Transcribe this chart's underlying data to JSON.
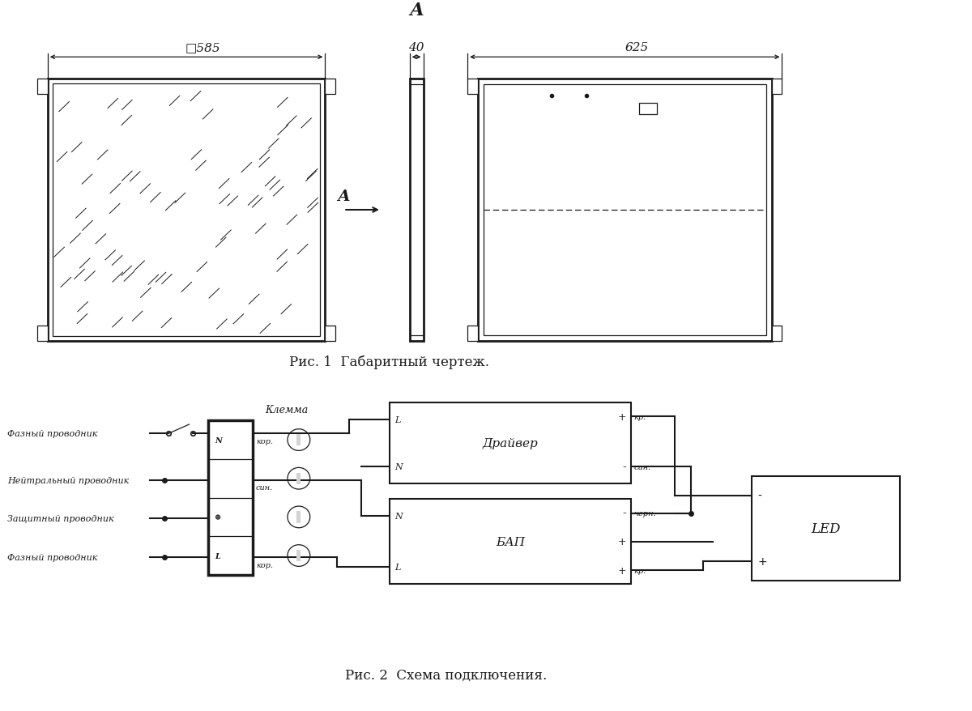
{
  "bg_color": "#ffffff",
  "line_color": "#1a1a1a",
  "fig1_caption": "Рис. 1  Габаритный чертеж.",
  "fig2_caption": "Рис. 2  Схема подключения.",
  "dim_585": "□585",
  "dim_40": "40",
  "dim_625": "625",
  "section_label": "А",
  "section_arrow_label": "А",
  "driver_label": "Драйвер",
  "bap_label": "БАП",
  "led_label": "LED",
  "klemma_label": "Клемма",
  "wire_labels": [
    "Фазный проводник",
    "Нейтральный проводник",
    "Защитный проводник",
    "Фазный проводник"
  ]
}
